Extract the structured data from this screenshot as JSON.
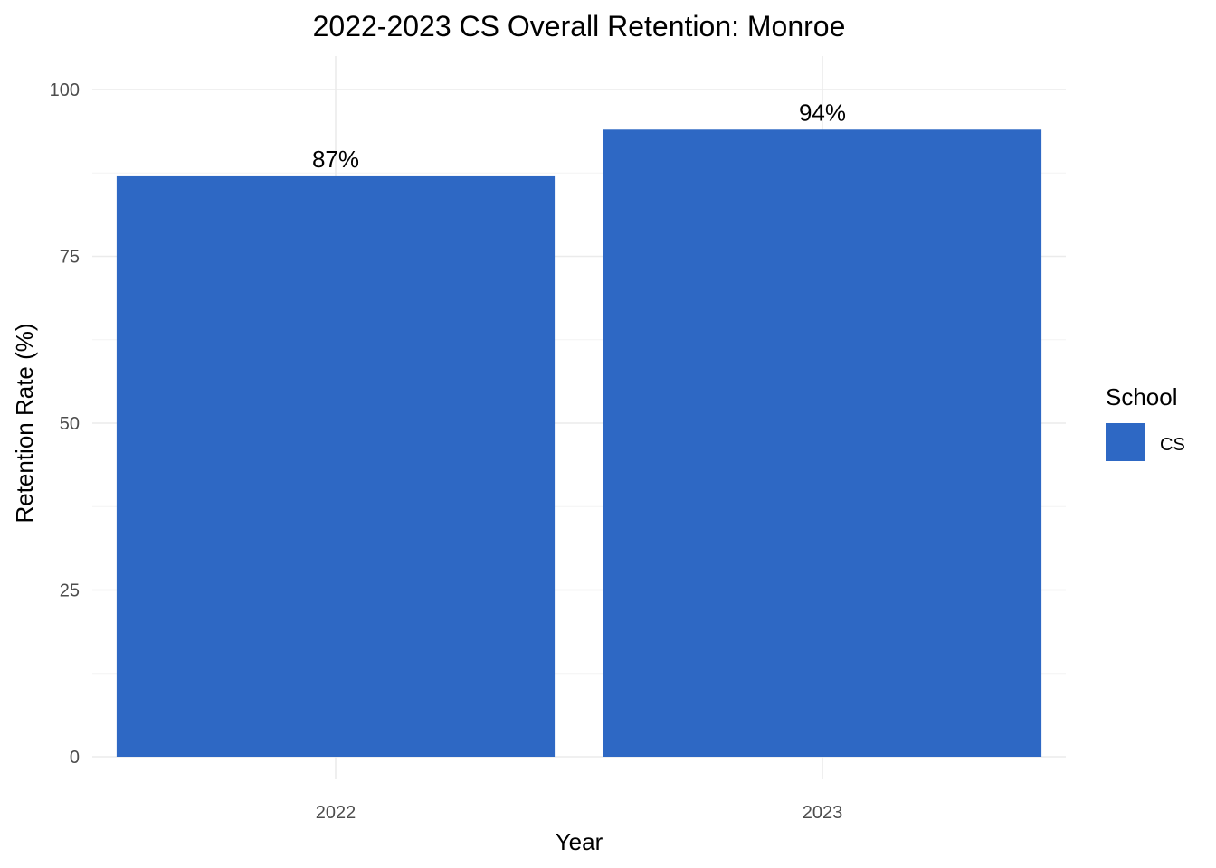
{
  "chart_data": {
    "type": "bar",
    "title": "2022-2023 CS Overall Retention: Monroe",
    "xlabel": "Year",
    "ylabel": "Retention Rate (%)",
    "categories": [
      "2022",
      "2023"
    ],
    "series": [
      {
        "name": "CS",
        "values": [
          87,
          94
        ],
        "labels": [
          "87%",
          "94%"
        ],
        "color": "#2e68c4"
      }
    ],
    "ylim": [
      0,
      100
    ],
    "yticks": [
      0,
      25,
      50,
      75,
      100
    ],
    "ytick_labels": [
      "0",
      "25",
      "50",
      "75",
      "100"
    ],
    "grid": true,
    "legend": {
      "title": "School",
      "position": "right"
    }
  }
}
